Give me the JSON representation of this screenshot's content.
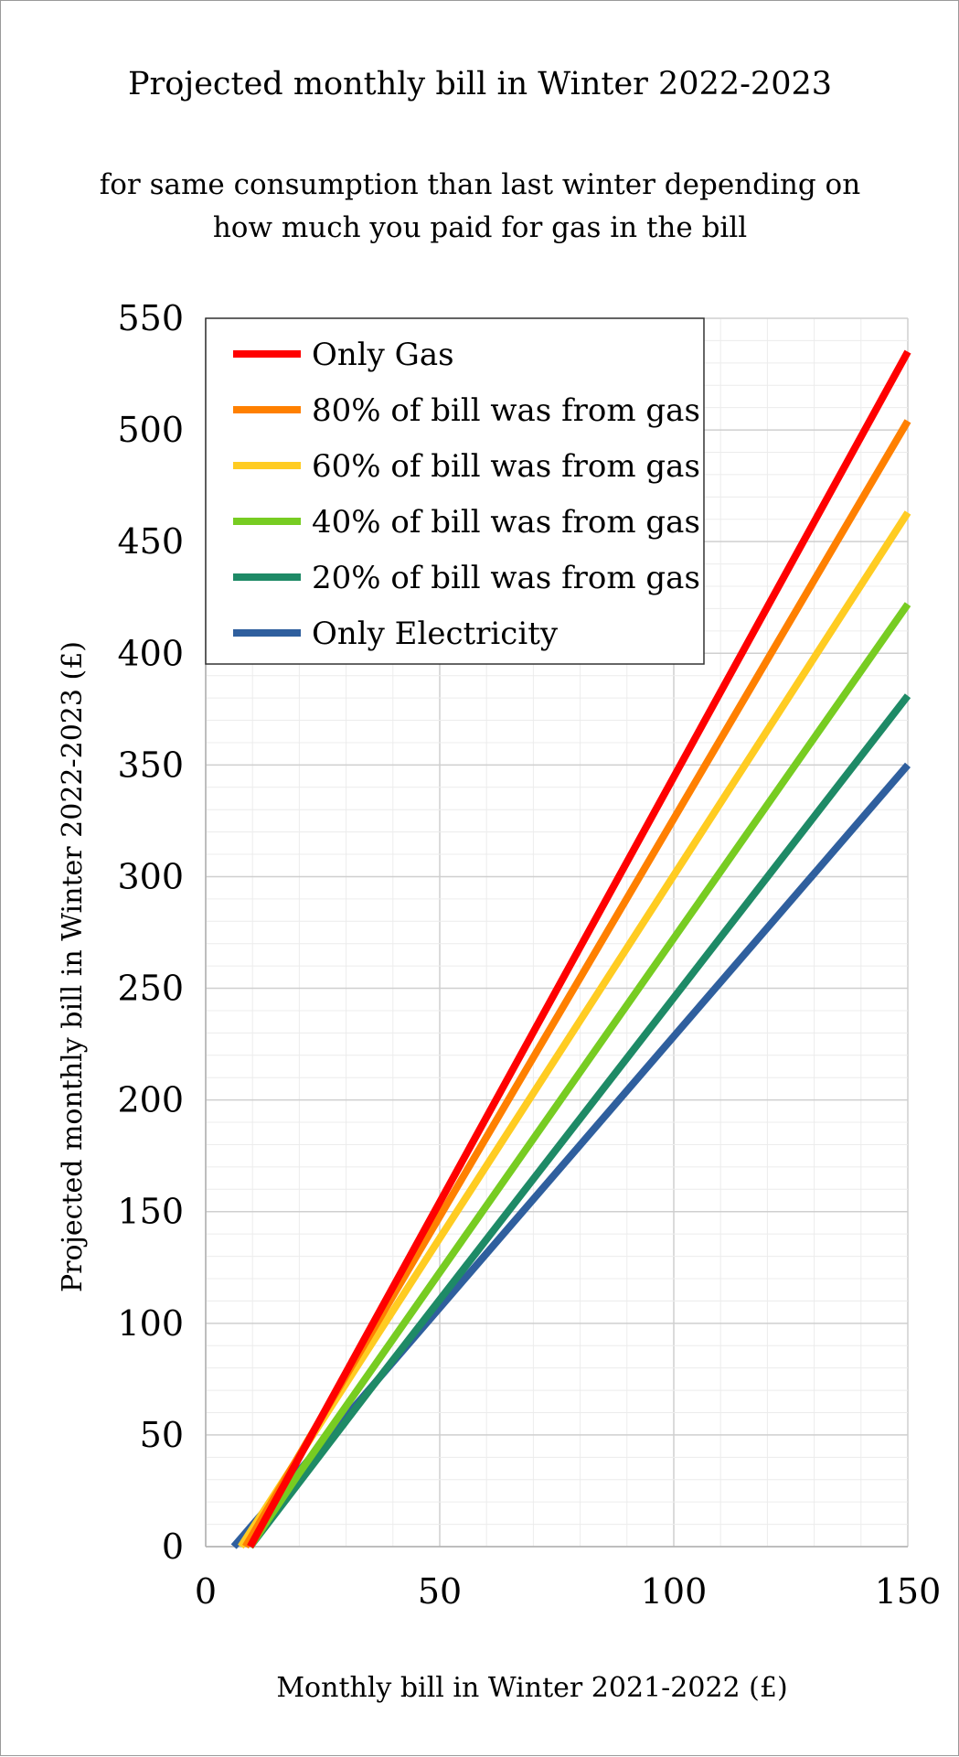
{
  "chart_data": {
    "type": "line",
    "title": "Projected monthly bill in Winter 2022-2023",
    "subtitle": [
      "for same consumption than last winter depending on",
      "how much you paid for gas in the bill"
    ],
    "xlabel": "Monthly bill in Winter 2021-2022 (£)",
    "ylabel": "Projected monthly bill in Winter 2022-2023 (£)",
    "xlim": [
      0,
      150
    ],
    "ylim": [
      0,
      550
    ],
    "xticks": [
      0,
      50,
      100,
      150
    ],
    "yticks": [
      0,
      50,
      100,
      150,
      200,
      250,
      300,
      350,
      400,
      450,
      500,
      550
    ],
    "grid": true,
    "legend_position": "top-left",
    "series": [
      {
        "name": "Only Gas",
        "color": "#ff0000",
        "points": [
          [
            9.5,
            0
          ],
          [
            150,
            535
          ]
        ]
      },
      {
        "name": "80% of bill was from gas",
        "color": "#ff8000",
        "points": [
          [
            8.5,
            0
          ],
          [
            150,
            504
          ]
        ]
      },
      {
        "name": "60% of bill was from gas",
        "color": "#ffcc22",
        "points": [
          [
            7.5,
            0
          ],
          [
            150,
            463
          ]
        ]
      },
      {
        "name": "40% of bill was from gas",
        "color": "#77cc22",
        "points": [
          [
            9.5,
            0
          ],
          [
            20,
            33
          ],
          [
            150,
            422
          ]
        ]
      },
      {
        "name": "20% of bill was from gas",
        "color": "#1e8a66",
        "points": [
          [
            9.5,
            0
          ],
          [
            35,
            70
          ],
          [
            150,
            381
          ]
        ]
      },
      {
        "name": "Only Electricity",
        "color": "#2f5f9e",
        "points": [
          [
            6,
            0
          ],
          [
            150,
            350
          ]
        ]
      }
    ]
  }
}
